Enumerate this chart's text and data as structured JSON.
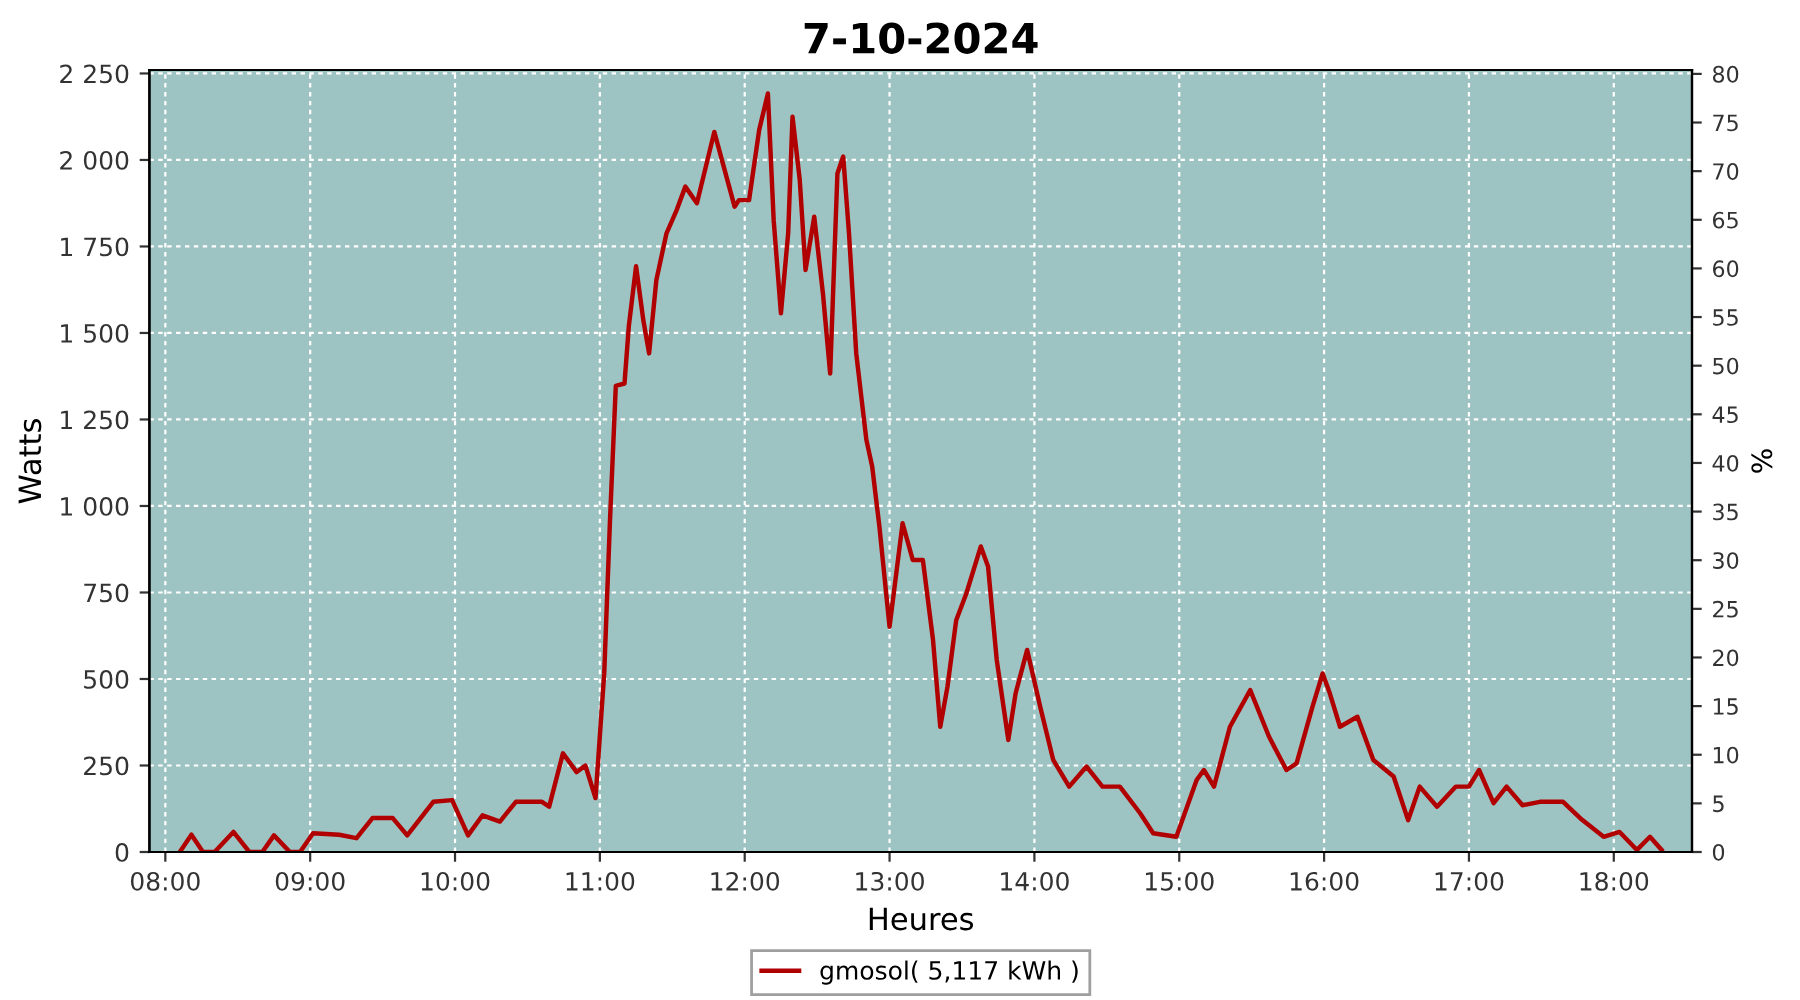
{
  "chart_data": {
    "type": "line",
    "title": "7-10-2024",
    "xlabel": "Heures",
    "ylabel": "Watts",
    "y2label": "%",
    "xlim": [
      7.89,
      18.54
    ],
    "xticks": [
      {
        "value": 8,
        "label": "08:00"
      },
      {
        "value": 9,
        "label": "09:00"
      },
      {
        "value": 10,
        "label": "10:00"
      },
      {
        "value": 11,
        "label": "11:00"
      },
      {
        "value": 12,
        "label": "12:00"
      },
      {
        "value": 13,
        "label": "13:00"
      },
      {
        "value": 14,
        "label": "14:00"
      },
      {
        "value": 15,
        "label": "15:00"
      },
      {
        "value": 16,
        "label": "16:00"
      },
      {
        "value": 17,
        "label": "17:00"
      },
      {
        "value": 18,
        "label": "18:00"
      }
    ],
    "ylim": [
      0,
      2260
    ],
    "yticks": [
      0,
      250,
      500,
      750,
      {
        "value": 1000,
        "label": "1 000"
      },
      {
        "value": 1250,
        "label": "1 250"
      },
      {
        "value": 1500,
        "label": "1 500"
      },
      {
        "value": 1750,
        "label": "1 750"
      },
      {
        "value": 2000,
        "label": "2 000"
      },
      {
        "value": 2250,
        "label": "2 250"
      }
    ],
    "y2lim": [
      0,
      80.4
    ],
    "y2ticks": [
      0,
      5,
      10,
      15,
      20,
      25,
      30,
      35,
      40,
      45,
      50,
      55,
      60,
      65,
      70,
      75,
      80
    ],
    "grid": true,
    "legend": "bottom",
    "marker": "none",
    "line_style": "solid",
    "series": [
      {
        "name": "gmosol( 5,117 kWh )",
        "color": "#b00000",
        "x": [
          8.1,
          8.18,
          8.26,
          8.34,
          8.47,
          8.58,
          8.67,
          8.75,
          8.86,
          8.93,
          9.02,
          9.2,
          9.32,
          9.43,
          9.57,
          9.67,
          9.85,
          9.98,
          10.09,
          10.19,
          10.31,
          10.42,
          10.6,
          10.65,
          10.745,
          10.84,
          10.9,
          10.97,
          11.03,
          11.07,
          11.11,
          11.17,
          11.2,
          11.25,
          11.3,
          11.34,
          11.39,
          11.46,
          11.53,
          11.59,
          11.67,
          11.79,
          11.93,
          11.96,
          12.03,
          12.1,
          12.16,
          12.2,
          12.25,
          12.3,
          12.33,
          12.38,
          12.42,
          12.48,
          12.54,
          12.59,
          12.64,
          12.68,
          12.72,
          12.77,
          12.84,
          12.88,
          12.93,
          13.0,
          13.09,
          13.16,
          13.23,
          13.3,
          13.35,
          13.4,
          13.46,
          13.53,
          13.63,
          13.68,
          13.74,
          13.82,
          13.87,
          13.95,
          14.04,
          14.13,
          14.24,
          14.36,
          14.47,
          14.59,
          14.73,
          14.82,
          14.98,
          15.12,
          15.17,
          15.24,
          15.35,
          15.49,
          15.62,
          15.74,
          15.81,
          15.92,
          15.99,
          16.04,
          16.11,
          16.23,
          16.34,
          16.48,
          16.58,
          16.66,
          16.78,
          16.91,
          17.0,
          17.07,
          17.17,
          17.26,
          17.37,
          17.49,
          17.65,
          17.77,
          17.93,
          18.04,
          18.16,
          18.25,
          18.33
        ],
        "values": [
          0,
          50,
          0,
          0,
          58,
          0,
          0,
          48,
          0,
          0,
          54,
          50,
          40,
          98,
          98,
          48,
          145,
          150,
          48,
          106,
          88,
          145,
          145,
          131,
          285,
          231,
          250,
          156,
          516,
          960,
          1347,
          1354,
          1520,
          1693,
          1537,
          1441,
          1653,
          1788,
          1855,
          1923,
          1875,
          2081,
          1865,
          1884,
          1884,
          2087,
          2192,
          1826,
          1557,
          1788,
          2125,
          1942,
          1682,
          1836,
          1614,
          1383,
          1961,
          2010,
          1788,
          1441,
          1191,
          1114,
          940,
          651,
          950,
          844,
          844,
          613,
          362,
          478,
          670,
          747,
          883,
          825,
          555,
          324,
          458,
          584,
          420,
          266,
          189,
          247,
          189,
          189,
          112,
          54,
          44,
          208,
          237,
          189,
          362,
          468,
          333,
          237,
          256,
          420,
          516,
          458,
          362,
          391,
          266,
          218,
          92,
          189,
          131,
          189,
          189,
          237,
          141,
          189,
          135,
          145,
          145,
          97,
          44,
          58,
          6,
          44,
          6
        ]
      }
    ]
  }
}
